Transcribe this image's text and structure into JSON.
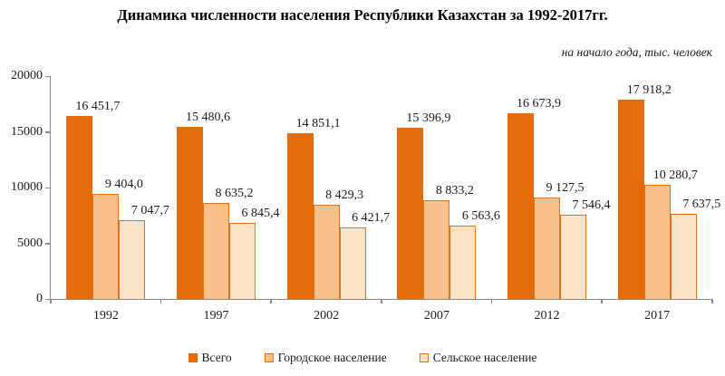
{
  "chart_data": {
    "type": "bar",
    "title": "Динамика численности населения Республики Казахстан за 1992-2017гг.",
    "subtitle": "на начало года, тыс. человек",
    "categories": [
      "1992",
      "1997",
      "2002",
      "2007",
      "2012",
      "2017"
    ],
    "series": [
      {
        "name": "Всего",
        "color": "#E36C0A",
        "border_color": "#E36C0A",
        "values": [
          16451.7,
          15480.6,
          14851.1,
          15396.9,
          16673.9,
          17918.2
        ],
        "labels": [
          "16 451,7",
          "15 480,6",
          "14 851,1",
          "15 396,9",
          "16 673,9",
          "17 918,2"
        ]
      },
      {
        "name": "Городское население",
        "color": "#F9C08C",
        "border_color": "#E1731A",
        "values": [
          9404.0,
          8635.2,
          8429.3,
          8833.2,
          9127.5,
          10280.7
        ],
        "labels": [
          "9 404,0",
          "8 635,2",
          "8 429,3",
          "8 833,2",
          "9 127,5",
          "10 280,7"
        ]
      },
      {
        "name": "Сельское население",
        "color": "#FCE2C6",
        "border_color": "#E1731A",
        "values": [
          7047.7,
          6845.4,
          6421.7,
          6563.6,
          7546.4,
          7637.5
        ],
        "labels": [
          "7 047,7",
          "6 845,4",
          "6 421,7",
          "6 563,6",
          "7 546,4",
          "7 637,5"
        ]
      }
    ],
    "ylim": [
      0,
      20000
    ],
    "ytick_step": 5000,
    "ytick_labels": [
      "0",
      "5000",
      "10000",
      "15000",
      "20000"
    ],
    "xlabel": "",
    "ylabel": "",
    "grid": false,
    "legend_position": "bottom",
    "axis_color": "#8a8a8a"
  }
}
